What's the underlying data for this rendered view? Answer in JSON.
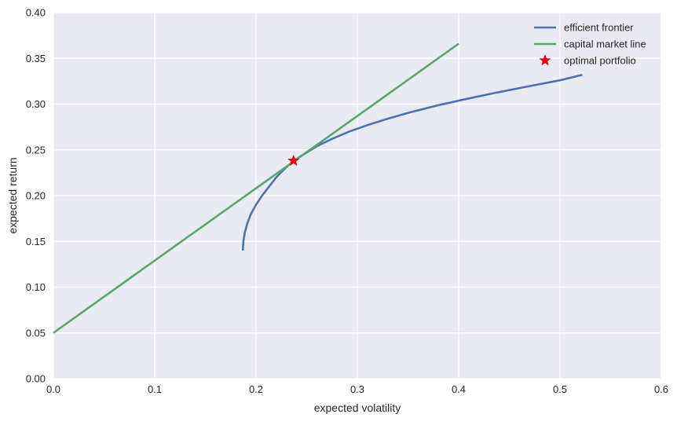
{
  "chart_data": {
    "type": "line",
    "title": "",
    "xlabel": "expected volatility",
    "ylabel": "expected return",
    "xlim": [
      0.0,
      0.6
    ],
    "ylim": [
      0.0,
      0.4
    ],
    "xticks": [
      "0.0",
      "0.1",
      "0.2",
      "0.3",
      "0.4",
      "0.5",
      "0.6"
    ],
    "yticks": [
      "0.00",
      "0.05",
      "0.10",
      "0.15",
      "0.20",
      "0.25",
      "0.30",
      "0.35",
      "0.40"
    ],
    "grid": true,
    "legend_position": "top-right",
    "series": [
      {
        "name": "efficient frontier",
        "type": "line",
        "color": "#4c72b0",
        "x": [
          0.187,
          0.1875,
          0.189,
          0.1915,
          0.195,
          0.2,
          0.206,
          0.213,
          0.22,
          0.228,
          0.237,
          0.247,
          0.26,
          0.275,
          0.292,
          0.31,
          0.33,
          0.352,
          0.377,
          0.405,
          0.435,
          0.467,
          0.5,
          0.522
        ],
        "y": [
          0.14,
          0.15,
          0.16,
          0.17,
          0.18,
          0.19,
          0.2,
          0.21,
          0.22,
          0.229,
          0.238,
          0.245,
          0.254,
          0.262,
          0.27,
          0.277,
          0.284,
          0.291,
          0.298,
          0.305,
          0.312,
          0.319,
          0.326,
          0.332
        ]
      },
      {
        "name": "capital market line",
        "type": "line",
        "color": "#55a868",
        "x": [
          0.0,
          0.4
        ],
        "y": [
          0.05,
          0.366
        ]
      },
      {
        "name": "optimal portfolio",
        "type": "scatter",
        "marker": "star",
        "color": "#ff0000",
        "x": [
          0.237
        ],
        "y": [
          0.238
        ]
      }
    ]
  },
  "colors": {
    "plot_background": "#eaeaf2",
    "grid": "#ffffff",
    "text": "#262626"
  }
}
